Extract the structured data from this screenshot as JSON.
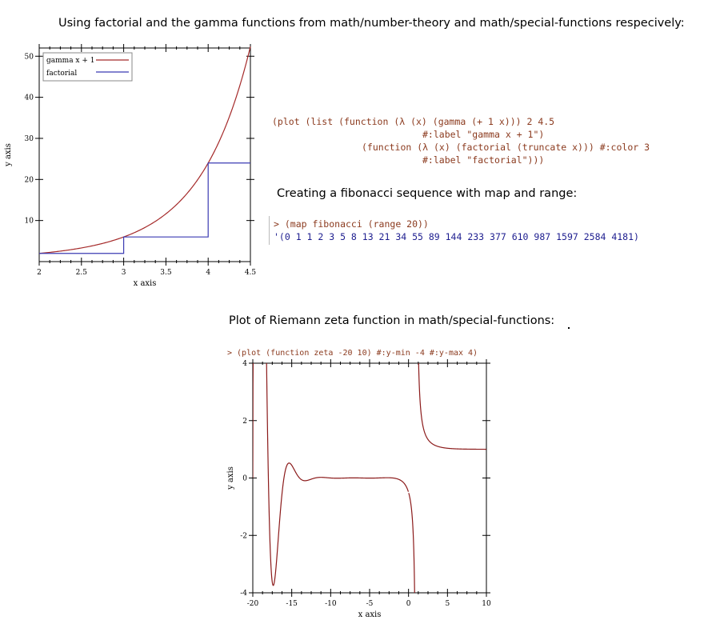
{
  "captions": {
    "top": "Using factorial and the gamma functions from math/number-theory and math/special-functions respecively:",
    "fib": "Creating a fibonacci sequence with map and range:",
    "zeta": "Plot of Riemann zeta function in math/special-functions:"
  },
  "code": {
    "plot1_line1": "(plot (list (function (λ (x) (gamma (+ 1 x))) 2 4.5",
    "plot1_line2": "#:label \"gamma x + 1\")",
    "plot1_line3": "(function (λ (x) (factorial (truncate x))) #:color 3",
    "plot1_line4": "#:label \"factorial\")))",
    "fib_input": "> (map fibonacci (range 20))",
    "fib_output": "'(0 1 1 2 3 5 8 13 21 34 55 89 144 233 377 610 987 1597 2584 4181)",
    "zeta_input": "> (plot (function zeta -20 10) #:y-min -4 #:y-max 4)"
  },
  "colors": {
    "gamma": "#a52a2a",
    "factorial": "#3b3bb3",
    "zeta": "#8b1a1a"
  },
  "chart_data": [
    {
      "type": "line",
      "title": "",
      "xlabel": "x axis",
      "ylabel": "y axis",
      "xlim": [
        2,
        4.5
      ],
      "ylim": [
        0,
        52
      ],
      "x_ticks": [
        "2",
        "2.5",
        "3",
        "3.5",
        "4",
        "4.5"
      ],
      "x_tick_values": [
        2,
        2.5,
        3,
        3.5,
        4,
        4.5
      ],
      "y_ticks": [
        "10",
        "20",
        "30",
        "40",
        "50"
      ],
      "y_tick_values": [
        10,
        20,
        30,
        40,
        50
      ],
      "legend": {
        "position": "top-left",
        "entries": [
          "gamma x + 1",
          "factorial"
        ]
      },
      "series": [
        {
          "name": "gamma x + 1",
          "function": "gamma(x + 1)",
          "x": [
            2,
            2.25,
            2.5,
            2.75,
            3,
            3.25,
            3.5,
            3.75,
            4,
            4.25,
            4.5
          ],
          "values": [
            2,
            2.73,
            3.32,
            4.42,
            6,
            8.28,
            11.63,
            16.58,
            24,
            35.21,
            52.34
          ]
        },
        {
          "name": "factorial",
          "function": "factorial(truncate x)",
          "x": [
            2,
            3,
            4,
            4.5
          ],
          "values": [
            2,
            6,
            24,
            24
          ]
        }
      ]
    },
    {
      "type": "line",
      "title": "",
      "xlabel": "x axis",
      "ylabel": "y axis",
      "xlim": [
        -20,
        10
      ],
      "ylim": [
        -4,
        4
      ],
      "x_ticks": [
        "-20",
        "-15",
        "-10",
        "-5",
        "0",
        "5",
        "10"
      ],
      "x_tick_values": [
        -20,
        -15,
        -10,
        -5,
        0,
        5,
        10
      ],
      "y_ticks": [
        "-4",
        "-2",
        "0",
        "2",
        "4"
      ],
      "y_tick_values": [
        -4,
        -2,
        0,
        2,
        4
      ],
      "series": [
        {
          "name": "",
          "function": "zeta(x)",
          "x": [
            -20,
            -18,
            -17,
            -16.5,
            -16,
            -15,
            -14,
            -12,
            -10,
            -8,
            -5,
            -2,
            0,
            0.5,
            1.2,
            2,
            3,
            5,
            10
          ],
          "values": [
            0,
            4,
            -3.8,
            0,
            0.4,
            0.1,
            0.0,
            0.0,
            0.0,
            0.0,
            0.0,
            0.0,
            -0.5,
            -1.46,
            5.6,
            1.64,
            1.2,
            1.04,
            1.0
          ]
        }
      ]
    }
  ]
}
